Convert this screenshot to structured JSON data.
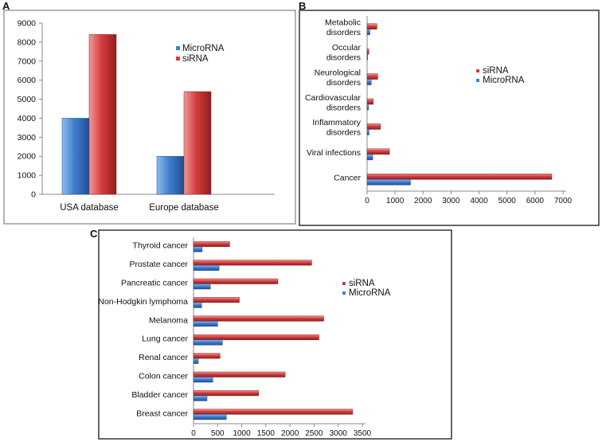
{
  "panels": [
    {
      "letter": "A"
    },
    {
      "letter": "B"
    },
    {
      "letter": "C"
    }
  ],
  "colors": {
    "microrna": "#3f7fd0",
    "microrna_light": "#8fbbea",
    "microrna_dark": "#1f4f94",
    "sirna": "#d63d3d",
    "sirna_light": "#ef9a9a",
    "sirna_dark": "#8f1e1e",
    "frame": "#9a9a9a",
    "frame_dark": "#333333"
  },
  "chart_data": [
    {
      "panel": "A",
      "type": "bar",
      "orientation": "vertical",
      "categories": [
        "USA database",
        "Europe database"
      ],
      "series": [
        {
          "name": "MicroRNA",
          "values": [
            4000,
            2000
          ]
        },
        {
          "name": "siRNA",
          "values": [
            8400,
            5400
          ]
        }
      ],
      "yticks": [
        "0",
        "1000",
        "2000",
        "3000",
        "4000",
        "5000",
        "6000",
        "7000",
        "8000",
        "9000"
      ],
      "ylim": [
        0,
        9000
      ],
      "legend": [
        "MicroRNA",
        "siRNA"
      ],
      "legend_placement": "top-right",
      "grid": false
    },
    {
      "panel": "B",
      "type": "bar",
      "orientation": "horizontal",
      "categories": [
        [
          "Metabolic",
          "disorders"
        ],
        [
          "Occular",
          "disorders"
        ],
        [
          "Neurological",
          "disorders"
        ],
        [
          "Cardiovascular",
          "disorders"
        ],
        [
          "Inflammatory",
          "disorders"
        ],
        [
          "Viral infections"
        ],
        [
          "Cancer"
        ]
      ],
      "series": [
        {
          "name": "siRNA",
          "values": [
            350,
            60,
            380,
            220,
            480,
            800,
            6600
          ]
        },
        {
          "name": "MicroRNA",
          "values": [
            100,
            20,
            150,
            50,
            70,
            200,
            1550
          ]
        }
      ],
      "xticks": [
        "0",
        "1000",
        "2000",
        "3000",
        "4000",
        "5000",
        "6000",
        "7000"
      ],
      "xlim": [
        0,
        7000
      ],
      "legend": [
        "siRNA",
        "MicroRNA"
      ],
      "legend_placement": "right",
      "grid": false
    },
    {
      "panel": "C",
      "type": "bar",
      "orientation": "horizontal",
      "categories": [
        "Thyroid cancer",
        "Prostate cancer",
        "Pancreatic cancer",
        "Non-Hodgkin lymphoma",
        "Melanoma",
        "Lung cancer",
        "Renal cancer",
        "Colon cancer",
        "Bladder cancer",
        "Breast cancer"
      ],
      "series": [
        {
          "name": "siRNA",
          "values": [
            750,
            2450,
            1750,
            950,
            2700,
            2600,
            550,
            1900,
            1350,
            3300
          ]
        },
        {
          "name": "MicroRNA",
          "values": [
            180,
            530,
            350,
            170,
            500,
            600,
            100,
            400,
            280,
            680
          ]
        }
      ],
      "xticks": [
        "0",
        "500",
        "1000",
        "1500",
        "2000",
        "2500",
        "3000",
        "3500"
      ],
      "xlim": [
        0,
        3500
      ],
      "legend": [
        "siRNA",
        "MicroRNA"
      ],
      "legend_placement": "right",
      "grid": false
    }
  ]
}
